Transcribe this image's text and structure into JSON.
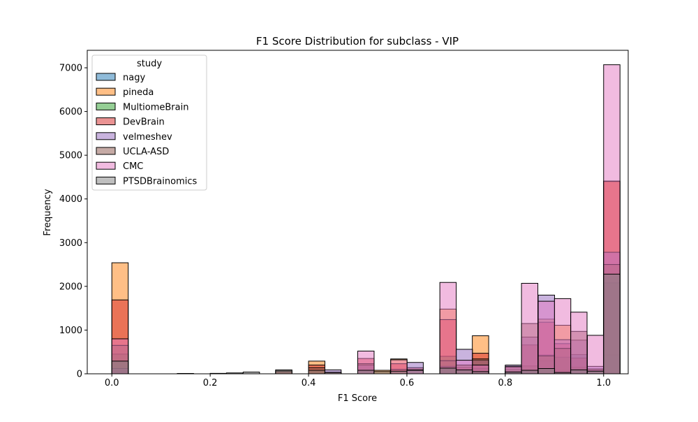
{
  "chart_data": {
    "type": "bar",
    "title": "F1 Score Distribution for subclass - VIP",
    "xlabel": "F1 Score",
    "ylabel": "Frequency",
    "xlim": [
      -0.05,
      1.05
    ],
    "ylim": [
      0,
      7400
    ],
    "x_ticks": [
      0.0,
      0.2,
      0.4,
      0.6,
      0.8,
      1.0
    ],
    "x_tick_labels": [
      "0.0",
      "0.2",
      "0.4",
      "0.6",
      "0.8",
      "1.0"
    ],
    "y_ticks": [
      0,
      1000,
      2000,
      3000,
      4000,
      5000,
      6000,
      7000
    ],
    "y_tick_labels": [
      "0",
      "1000",
      "2000",
      "3000",
      "4000",
      "5000",
      "6000",
      "7000"
    ],
    "bin_width": 0.0333,
    "grid": false,
    "legend": {
      "title": "study",
      "placement": "top-left"
    },
    "series": [
      {
        "name": "nagy",
        "color": "#1f77b4",
        "bins": [
          [
            0.0,
            60
          ],
          [
            0.667,
            130
          ],
          [
            0.8,
            60
          ],
          [
            0.833,
            80
          ],
          [
            0.867,
            300
          ],
          [
            0.9,
            80
          ],
          [
            0.933,
            440
          ],
          [
            1.0,
            430
          ]
        ]
      },
      {
        "name": "pineda",
        "color": "#ff7f0e",
        "bins": [
          [
            0.0,
            2540
          ],
          [
            0.4,
            290
          ],
          [
            0.433,
            40
          ],
          [
            0.533,
            80
          ],
          [
            0.567,
            340
          ],
          [
            0.667,
            1480
          ],
          [
            0.733,
            870
          ],
          [
            0.867,
            1250
          ],
          [
            0.9,
            1110
          ],
          [
            1.0,
            4410
          ]
        ]
      },
      {
        "name": "MultiomeBrain",
        "color": "#2ca02c",
        "bins": [
          [
            0.0,
            450
          ],
          [
            0.667,
            400
          ],
          [
            0.7,
            80
          ],
          [
            0.733,
            120
          ],
          [
            0.8,
            100
          ],
          [
            0.833,
            180
          ],
          [
            0.867,
            430
          ],
          [
            0.9,
            380
          ],
          [
            0.933,
            150
          ],
          [
            0.967,
            80
          ],
          [
            1.0,
            2080
          ]
        ]
      },
      {
        "name": "DevBrain",
        "color": "#d62728",
        "bins": [
          [
            0.0,
            1690
          ],
          [
            0.333,
            70
          ],
          [
            0.4,
            200
          ],
          [
            0.5,
            350
          ],
          [
            0.567,
            230
          ],
          [
            0.6,
            140
          ],
          [
            0.667,
            1240
          ],
          [
            0.7,
            150
          ],
          [
            0.733,
            470
          ],
          [
            0.833,
            660
          ],
          [
            0.867,
            1180
          ],
          [
            0.9,
            690
          ],
          [
            0.933,
            360
          ],
          [
            1.0,
            4400
          ]
        ]
      },
      {
        "name": "velmeshev",
        "color": "#9467bd",
        "bins": [
          [
            0.0,
            120
          ],
          [
            0.433,
            90
          ],
          [
            0.5,
            200
          ],
          [
            0.6,
            260
          ],
          [
            0.667,
            170
          ],
          [
            0.7,
            560
          ],
          [
            0.733,
            310
          ],
          [
            0.8,
            200
          ],
          [
            0.833,
            840
          ],
          [
            0.867,
            1800
          ],
          [
            0.9,
            780
          ],
          [
            0.933,
            770
          ],
          [
            0.967,
            170
          ],
          [
            1.0,
            2780
          ]
        ]
      },
      {
        "name": "UCLA-ASD",
        "color": "#8c564b",
        "bins": [
          [
            0.0,
            650
          ],
          [
            0.333,
            50
          ],
          [
            0.4,
            140
          ],
          [
            0.5,
            230
          ],
          [
            0.567,
            100
          ],
          [
            0.667,
            300
          ],
          [
            0.7,
            200
          ],
          [
            0.733,
            340
          ],
          [
            0.8,
            150
          ],
          [
            0.833,
            1150
          ],
          [
            0.867,
            410
          ],
          [
            0.9,
            580
          ],
          [
            0.933,
            970
          ],
          [
            0.967,
            110
          ],
          [
            1.0,
            2500
          ]
        ]
      },
      {
        "name": "CMC",
        "color": "#e377c2",
        "bins": [
          [
            0.0,
            800
          ],
          [
            0.5,
            520
          ],
          [
            0.567,
            320
          ],
          [
            0.6,
            90
          ],
          [
            0.667,
            2090
          ],
          [
            0.7,
            310
          ],
          [
            0.733,
            200
          ],
          [
            0.8,
            170
          ],
          [
            0.833,
            2070
          ],
          [
            0.867,
            1660
          ],
          [
            0.9,
            1720
          ],
          [
            0.933,
            1410
          ],
          [
            0.967,
            880
          ],
          [
            1.0,
            7070
          ]
        ]
      },
      {
        "name": "PTSDBrainomics",
        "color": "#7f7f7f",
        "bins": [
          [
            0.0,
            290
          ],
          [
            0.133,
            8
          ],
          [
            0.2,
            10
          ],
          [
            0.233,
            20
          ],
          [
            0.267,
            40
          ],
          [
            0.333,
            90
          ],
          [
            0.4,
            80
          ],
          [
            0.433,
            30
          ],
          [
            0.5,
            80
          ],
          [
            0.533,
            50
          ],
          [
            0.567,
            60
          ],
          [
            0.6,
            80
          ],
          [
            0.667,
            130
          ],
          [
            0.7,
            90
          ],
          [
            0.733,
            50
          ],
          [
            0.8,
            40
          ],
          [
            0.833,
            80
          ],
          [
            0.867,
            120
          ],
          [
            0.9,
            30
          ],
          [
            0.933,
            90
          ],
          [
            0.967,
            60
          ],
          [
            1.0,
            2280
          ]
        ]
      }
    ]
  }
}
